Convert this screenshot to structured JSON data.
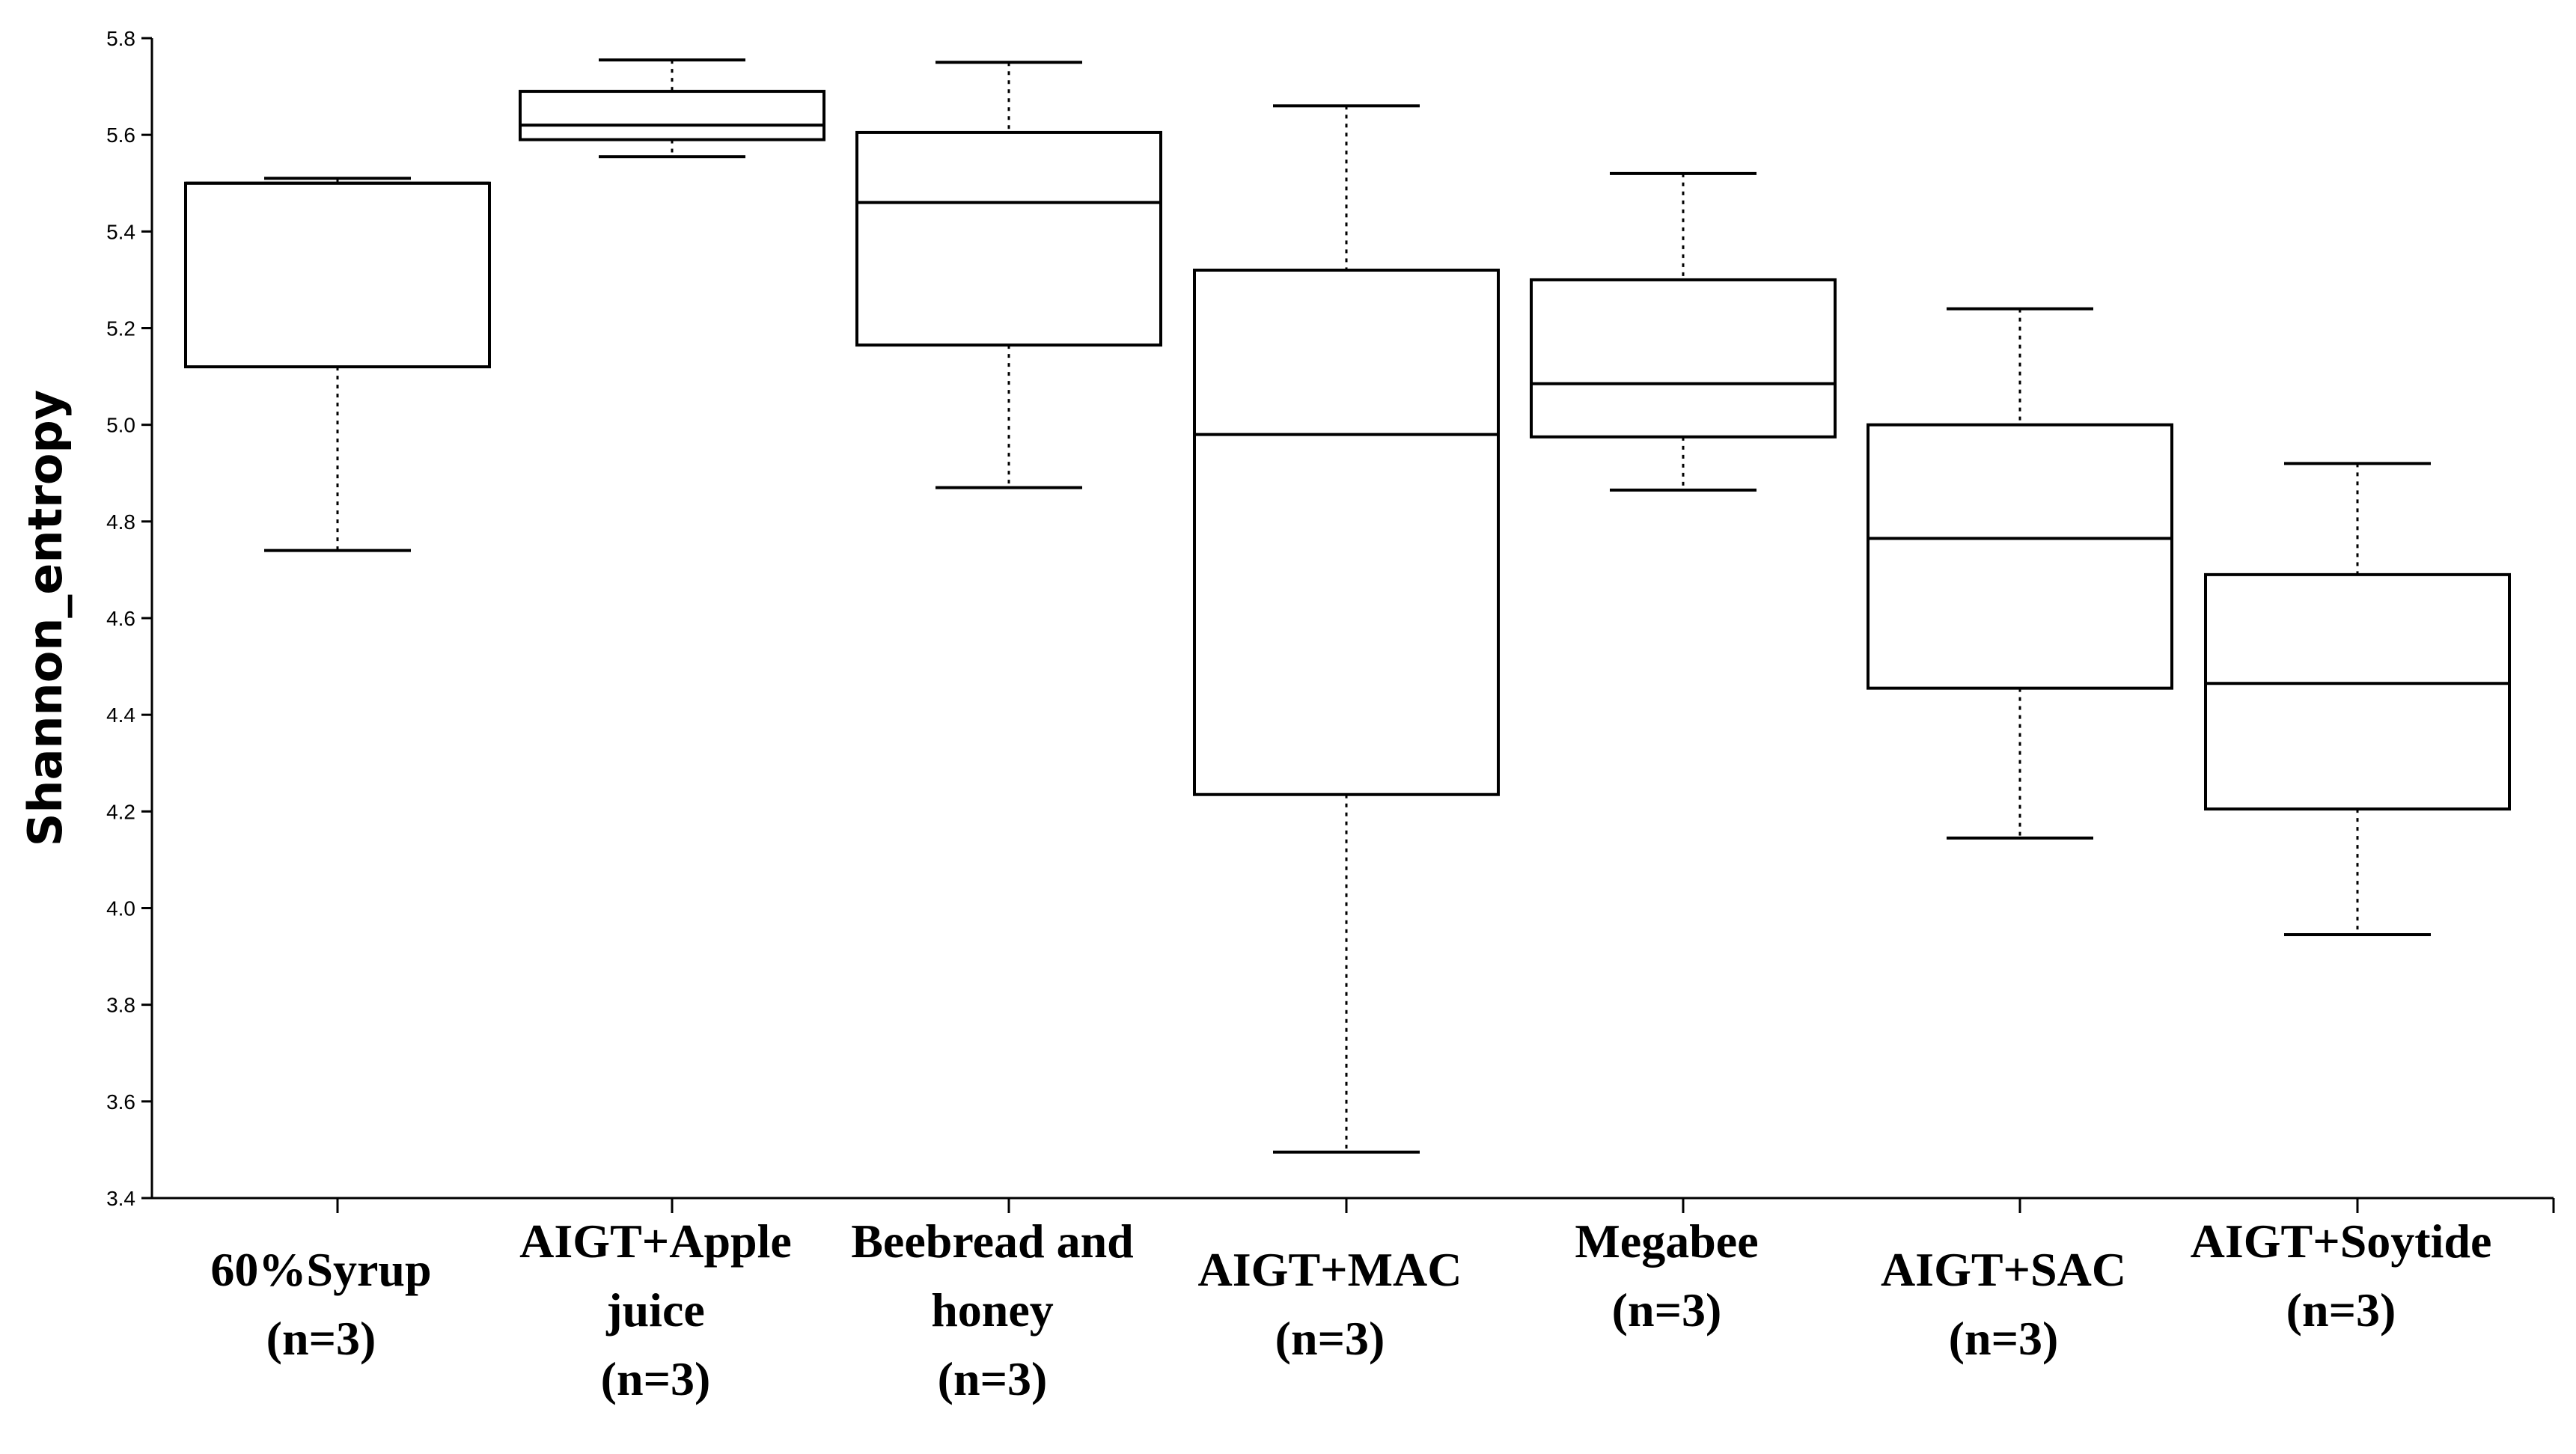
{
  "chart_data": {
    "type": "box",
    "title": "",
    "xlabel": "",
    "ylabel": "Shannon_entropy",
    "ylim": [
      3.4,
      5.8
    ],
    "yticks": [
      3.4,
      3.6,
      3.8,
      4.0,
      4.2,
      4.4,
      4.6,
      4.8,
      5.0,
      5.2,
      5.4,
      5.6,
      5.8
    ],
    "ytick_labels": [
      "3.4",
      "3.6",
      "3.8",
      "4.0",
      "4.2",
      "4.4",
      "4.6",
      "4.8",
      "5.0",
      "5.2",
      "5.4",
      "5.6",
      "5.8"
    ],
    "grid": false,
    "categories": [
      {
        "lines": [
          "60%Syrup",
          "(n=3)"
        ]
      },
      {
        "lines": [
          "AIGT+Apple",
          "juice",
          "(n=3)"
        ]
      },
      {
        "lines": [
          "Beebread and",
          "honey",
          "(n=3)"
        ]
      },
      {
        "lines": [
          "AIGT+MAC",
          "(n=3)"
        ]
      },
      {
        "lines": [
          "Megabee",
          "(n=3)"
        ]
      },
      {
        "lines": [
          "AIGT+SAC",
          "(n=3)"
        ]
      },
      {
        "lines": [
          "AIGT+Soytide",
          "(n=3)"
        ]
      }
    ],
    "boxes": [
      {
        "min": 4.74,
        "q1": 5.12,
        "median": 5.5,
        "q3": 5.5,
        "max": 5.51
      },
      {
        "min": 5.555,
        "q1": 5.59,
        "median": 5.62,
        "q3": 5.69,
        "max": 5.755
      },
      {
        "min": 4.87,
        "q1": 5.165,
        "median": 5.46,
        "q3": 5.605,
        "max": 5.75
      },
      {
        "min": 3.495,
        "q1": 4.235,
        "median": 4.98,
        "q3": 5.32,
        "max": 5.66
      },
      {
        "min": 4.865,
        "q1": 4.975,
        "median": 5.085,
        "q3": 5.3,
        "max": 5.52
      },
      {
        "min": 4.145,
        "q1": 4.455,
        "median": 4.765,
        "q3": 5.0,
        "max": 5.24
      },
      {
        "min": 3.945,
        "q1": 4.205,
        "median": 4.465,
        "q3": 4.69,
        "max": 4.92
      }
    ]
  }
}
